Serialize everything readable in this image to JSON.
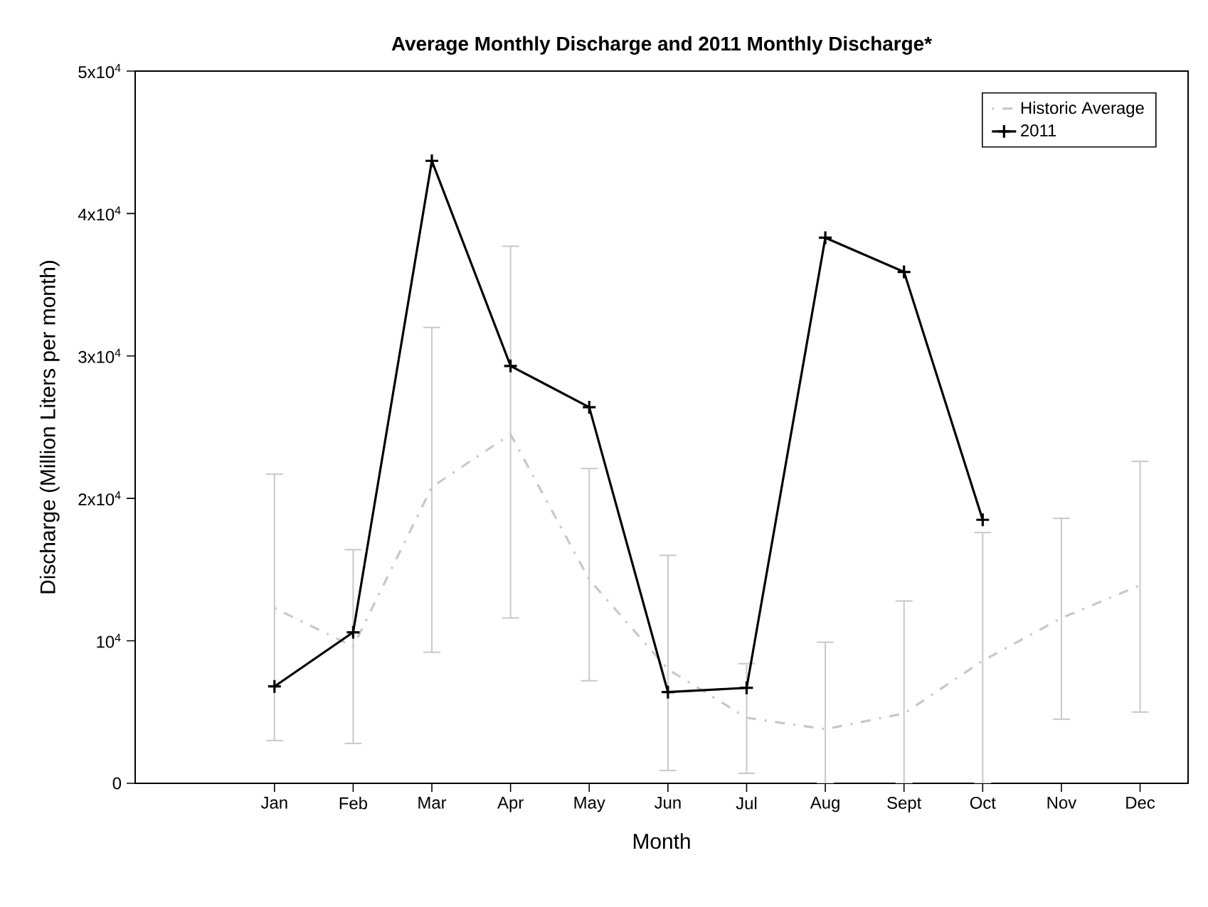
{
  "chart_data": {
    "type": "line",
    "title": "Average Monthly Discharge and 2011 Monthly Discharge*",
    "xlabel": "Month",
    "ylabel": "Discharge (Million Liters per month)",
    "categories": [
      "Jan",
      "Feb",
      "Mar",
      "Apr",
      "May",
      "Jun",
      "Jul",
      "Aug",
      "Sept",
      "Oct",
      "Nov",
      "Dec"
    ],
    "series": [
      {
        "name": "Historic Average",
        "color": "#c8c8c8",
        "line_style": "dashed",
        "marker": "none",
        "values": [
          12300,
          9600,
          20800,
          24500,
          14300,
          8000,
          4600,
          3800,
          4900,
          8600,
          11600,
          13900
        ],
        "errors": [
          [
            3000,
            21700
          ],
          [
            2800,
            16400
          ],
          [
            9200,
            32000
          ],
          [
            11600,
            37700
          ],
          [
            7200,
            22100
          ],
          [
            900,
            16000
          ],
          [
            700,
            8400
          ],
          [
            0,
            9900
          ],
          [
            0,
            12800
          ],
          [
            0,
            17600
          ],
          [
            4500,
            18600
          ],
          [
            5000,
            22600
          ]
        ]
      },
      {
        "name": "2011",
        "color": "#000000",
        "line_style": "solid",
        "marker": "cross",
        "values": [
          6800,
          10600,
          43700,
          29300,
          26400,
          6400,
          6700,
          38300,
          35900,
          18500,
          null,
          null
        ]
      }
    ],
    "ylim": [
      0,
      50000
    ],
    "yticks": [
      0,
      {
        "value": 10000,
        "label": "10$^{4}$"
      },
      {
        "value": 20000,
        "label": "2x10$^{4}$"
      },
      {
        "value": 30000,
        "label": "3x10$^{4}$"
      },
      {
        "value": 40000,
        "label": "4x10$^{4}$"
      },
      {
        "value": 50000,
        "label": "5x10$^{4}$"
      }
    ],
    "grid": false,
    "legend": "top right"
  }
}
